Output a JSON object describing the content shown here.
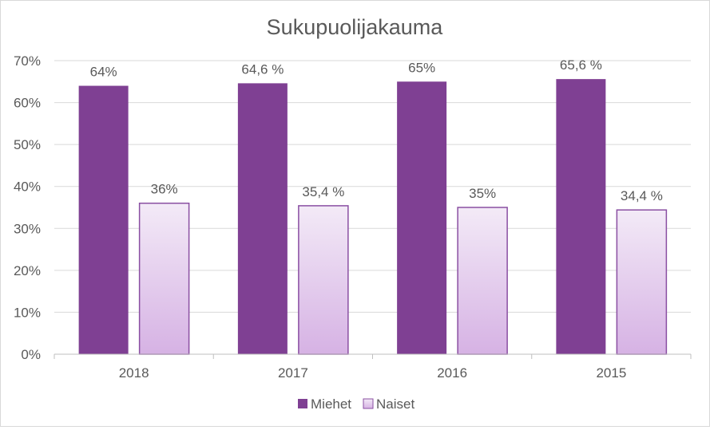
{
  "chart_data": {
    "type": "bar",
    "title": "Sukupuolijakauma",
    "categories": [
      "2018",
      "2017",
      "2016",
      "2015"
    ],
    "series": [
      {
        "name": "Miehet",
        "values": [
          0.64,
          0.646,
          0.65,
          0.656
        ],
        "labels": [
          "64%",
          "64,6 %",
          "65%",
          "65,6 %"
        ],
        "color": "#7f4093"
      },
      {
        "name": "Naiset",
        "values": [
          0.36,
          0.354,
          0.35,
          0.344
        ],
        "labels": [
          "36%",
          "35,4 %",
          "35%",
          "34,4 %"
        ],
        "color": "#f3eaf7",
        "gradient_bottom": "#d6b2e4",
        "border": "#8a4fa2"
      }
    ],
    "ylim": [
      0,
      0.7
    ],
    "yticks": [
      "0%",
      "10%",
      "20%",
      "30%",
      "40%",
      "50%",
      "60%",
      "70%"
    ],
    "grid": true,
    "legend_position": "bottom"
  }
}
